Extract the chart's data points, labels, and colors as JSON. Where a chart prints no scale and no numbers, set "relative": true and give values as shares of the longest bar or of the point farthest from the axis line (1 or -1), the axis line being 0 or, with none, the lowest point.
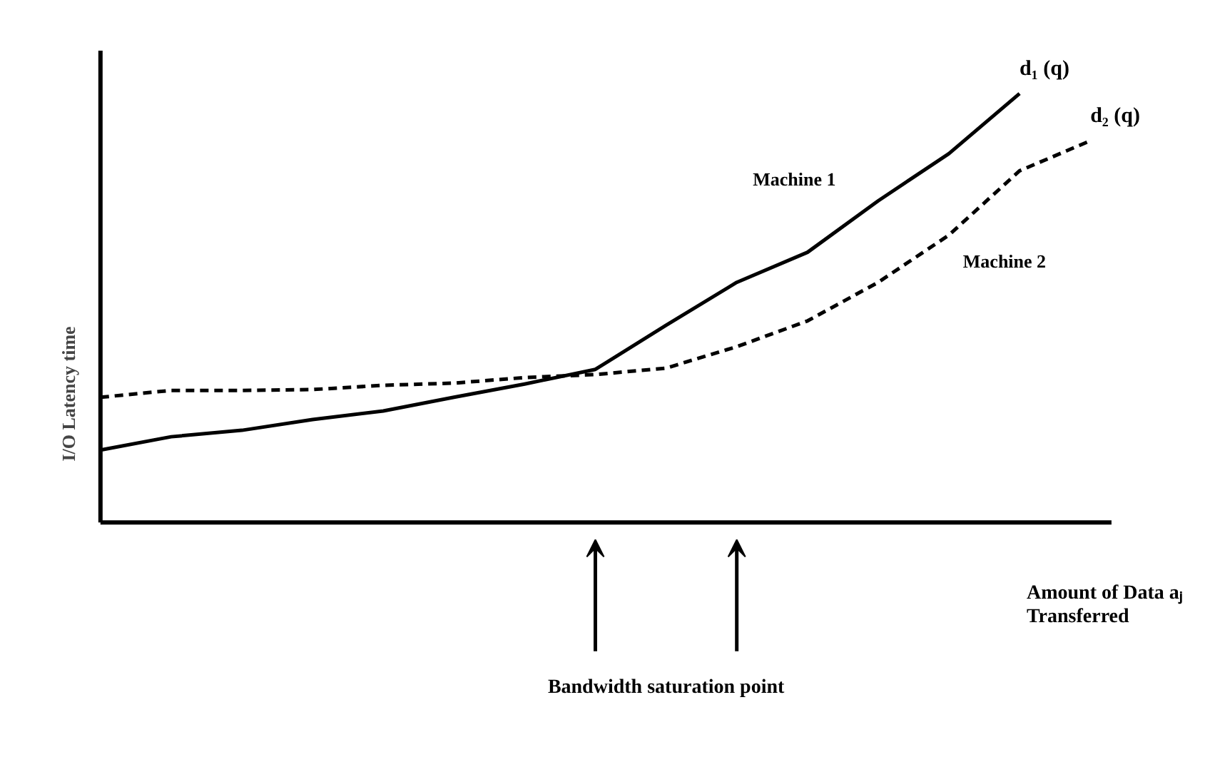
{
  "chart_data": {
    "type": "line",
    "relative": true,
    "ylabel": "I/O Latency time",
    "xlabel": "Amount of Data aⱼ\nTransferred",
    "categories": [
      null,
      null,
      null,
      null,
      null,
      null,
      null,
      null,
      null,
      null,
      null,
      null,
      null,
      null,
      null
    ],
    "series": [
      {
        "name": "Machine 1",
        "color": "#000000",
        "line_style": "solid",
        "values": [
          0.169,
          0.2,
          0.215,
          0.24,
          0.26,
          0.292,
          0.323,
          0.357,
          0.46,
          0.56,
          0.63,
          0.75,
          0.86,
          1.0,
          null
        ]
      },
      {
        "name": "Machine 2",
        "color": "#000000",
        "line_style": "dashed",
        "values": [
          0.292,
          0.308,
          0.308,
          0.31,
          0.32,
          0.325,
          0.338,
          0.345,
          0.36,
          0.41,
          0.47,
          0.56,
          0.67,
          0.82,
          0.89
        ]
      }
    ],
    "annotations": [
      "d₁ (q)",
      "d₂ (q)",
      "Bandwidth saturation point"
    ],
    "grid": false,
    "marker": "none"
  }
}
